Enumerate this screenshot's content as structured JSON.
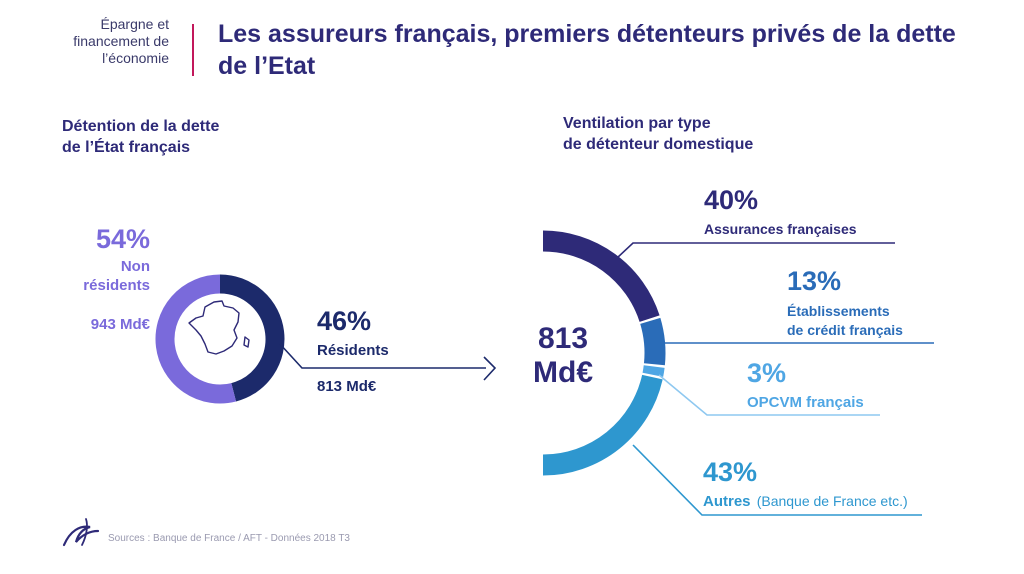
{
  "header": {
    "section_lines": [
      "Épargne et",
      "financement de",
      "l’économie"
    ],
    "title": "Les assureurs français, premiers détenteurs privés de la dette de l’Etat"
  },
  "left": {
    "subtitle_lines": [
      "Détention de la dette",
      "de l’État français"
    ],
    "non_residents": {
      "pct": "54%",
      "label_lines": [
        "Non",
        "résidents"
      ],
      "amount": "943 Md€"
    },
    "residents": {
      "pct": "46%",
      "label": "Résidents",
      "amount": "813 Md€"
    }
  },
  "right": {
    "subtitle_lines": [
      "Ventilation par type",
      "de détenteur domestique"
    ],
    "center_lines": [
      "813",
      "Md€"
    ],
    "assurances": {
      "pct": "40%",
      "label": "Assurances françaises"
    },
    "etablissements": {
      "pct": "13%",
      "label_lines": [
        "Établissements",
        "de crédit français"
      ]
    },
    "opcvm": {
      "pct": "3%",
      "label": "OPCVM français"
    },
    "autres": {
      "pct": "43%",
      "label": "Autres",
      "note": "(Banque de France etc.)"
    }
  },
  "footer": {
    "source": "Sources : Banque de France / AFT - Données 2018 T3"
  },
  "colors": {
    "non_residents": "#7a6adb",
    "residents": "#1c2a6b",
    "assurances": "#2e2a78",
    "etablissements": "#2a6cb8",
    "opcvm": "#4fa6e4",
    "autres": "#2e97cf"
  },
  "chart_data": [
    {
      "type": "pie",
      "title": "Détention de la dette de l’État français",
      "slices": [
        {
          "label": "Non résidents",
          "percent": 54,
          "value": 943,
          "unit": "Md€"
        },
        {
          "label": "Résidents",
          "percent": 46,
          "value": 813,
          "unit": "Md€"
        }
      ]
    },
    {
      "type": "pie",
      "title": "Ventilation par type de détenteur domestique",
      "total": 813,
      "unit": "Md€",
      "slices": [
        {
          "label": "Assurances françaises",
          "percent": 40
        },
        {
          "label": "Établissements de crédit français",
          "percent": 13
        },
        {
          "label": "OPCVM français",
          "percent": 3
        },
        {
          "label": "Autres",
          "percent": 43
        }
      ]
    }
  ]
}
